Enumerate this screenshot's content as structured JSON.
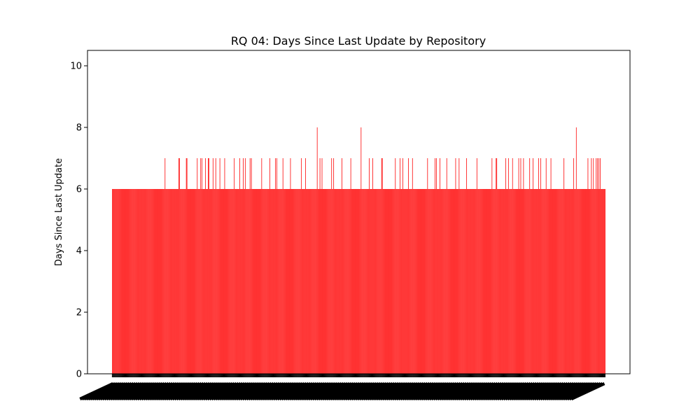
{
  "chart_data": {
    "type": "bar",
    "title": "RQ 04: Days Since Last Update by Repository",
    "xlabel": "",
    "ylabel": "Days Since Last Update",
    "ylim": [
      0,
      10.5
    ],
    "yticks": [
      "0",
      "2",
      "4",
      "6",
      "8",
      "10"
    ],
    "bar_color": "#ff0000",
    "grid": false,
    "legend": "none",
    "x_tick_labels_legible": false,
    "values": [
      6,
      6,
      6,
      6,
      6,
      6,
      6,
      6,
      6,
      6,
      6,
      6,
      6,
      6,
      6,
      6,
      6,
      6,
      6,
      6,
      6,
      6,
      6,
      6,
      6,
      6,
      6,
      6,
      6,
      6,
      6,
      6,
      6,
      6,
      6,
      6,
      6,
      6,
      6,
      6,
      6,
      6,
      6,
      6,
      6,
      6,
      6,
      6,
      6,
      6,
      6,
      6,
      6,
      6,
      6,
      6,
      6,
      6,
      6,
      6,
      6,
      6,
      6,
      6,
      6,
      6,
      6,
      6,
      6,
      6,
      6,
      6,
      6,
      6,
      6,
      6,
      6,
      7,
      6,
      6,
      6,
      6,
      6,
      6,
      6,
      6,
      6,
      6,
      6,
      6,
      6,
      6,
      6,
      6,
      6,
      6,
      6,
      6,
      6,
      6,
      6,
      6,
      6,
      6,
      6,
      6,
      6,
      6,
      6,
      6,
      6,
      6,
      6,
      6,
      6,
      6,
      6,
      6,
      6,
      6,
      6,
      6,
      6,
      6,
      6,
      6,
      6,
      6,
      6,
      6,
      6,
      6,
      6,
      6,
      6,
      6,
      6,
      6,
      6,
      6,
      6,
      6,
      6,
      6,
      6,
      6,
      6,
      6,
      6,
      6,
      6,
      6,
      6,
      6,
      6,
      6,
      6,
      6,
      6,
      6,
      6,
      6,
      6,
      6,
      6,
      6,
      6,
      6,
      6,
      6,
      6,
      6,
      6,
      6,
      6,
      6,
      6,
      6,
      6,
      6,
      6,
      6,
      6,
      6,
      6,
      6,
      6,
      6,
      6,
      6,
      6,
      6,
      6,
      6,
      6,
      6,
      6,
      6,
      6,
      6,
      6,
      6,
      6,
      6,
      6,
      6,
      6,
      6,
      6,
      6,
      6,
      6,
      6,
      6,
      6,
      6,
      6,
      6,
      6,
      6,
      6,
      6,
      6,
      6,
      6,
      6,
      6,
      6,
      6,
      6,
      6,
      6,
      6,
      6,
      6,
      6,
      6,
      6,
      6,
      6,
      6,
      6,
      6,
      6,
      6,
      6,
      6,
      6,
      6,
      6,
      6,
      6,
      6,
      6,
      6,
      6,
      6,
      6,
      6,
      6,
      6,
      6,
      6,
      6,
      6,
      6,
      6,
      6,
      6,
      6,
      6,
      6,
      6,
      6,
      6,
      6,
      6,
      6,
      6,
      6,
      6,
      6,
      6,
      6,
      6,
      6,
      6,
      6,
      6,
      6,
      6,
      6,
      6,
      6,
      6,
      6,
      6,
      6,
      6,
      6,
      6,
      6,
      6,
      6,
      6,
      6,
      6,
      6,
      6,
      6,
      6,
      6,
      6,
      6,
      6,
      6,
      6,
      6,
      6,
      6,
      6,
      6,
      6,
      6,
      6,
      6,
      6,
      6,
      6,
      6,
      6,
      6,
      6,
      6,
      6,
      6,
      6,
      6,
      6,
      6,
      6,
      6,
      6,
      6,
      6,
      6,
      6,
      6,
      6,
      6,
      6,
      6,
      6,
      6,
      6,
      6,
      6,
      6,
      6,
      6,
      6,
      6,
      6,
      6,
      6,
      6,
      6,
      6,
      6,
      6,
      6,
      6,
      6,
      6,
      6,
      6,
      6,
      6,
      6,
      6,
      6,
      6,
      6,
      6,
      6,
      6,
      6,
      6,
      6,
      6,
      6,
      6,
      6,
      6,
      6,
      6,
      6,
      6,
      6,
      6,
      6,
      6,
      6,
      6,
      6,
      6,
      6,
      6,
      6,
      6,
      6,
      6,
      6,
      6,
      6,
      6,
      6,
      6,
      6,
      6,
      6,
      6,
      6,
      6,
      6,
      6,
      6,
      6,
      6,
      6,
      6,
      6,
      6,
      6,
      6,
      6,
      6,
      6,
      6,
      6,
      6,
      6,
      6,
      6,
      6,
      6,
      6,
      6,
      6,
      6,
      6,
      6,
      6,
      6,
      6,
      6,
      6,
      6,
      6,
      6,
      6,
      6,
      6,
      6,
      6,
      6,
      6,
      6,
      6,
      6,
      6,
      6,
      6,
      6,
      6,
      6,
      6,
      6,
      6,
      6,
      6,
      6,
      6,
      6,
      6,
      6,
      6,
      6,
      6,
      6,
      6,
      6,
      6,
      6,
      6,
      6,
      6,
      6,
      6,
      6,
      6,
      6,
      6,
      6,
      6,
      6,
      6,
      6,
      6,
      6,
      6,
      6,
      6,
      6,
      6,
      6,
      6,
      6,
      6,
      6,
      6,
      6,
      6,
      6,
      6,
      6,
      6,
      6,
      6,
      6,
      6,
      6,
      6,
      6,
      6,
      6,
      6,
      6,
      6,
      6,
      6,
      6,
      6,
      6,
      6,
      6,
      6,
      6,
      6,
      6,
      6,
      6,
      6,
      6,
      6,
      6,
      6,
      6,
      6,
      6,
      6,
      6,
      6,
      6,
      6,
      6,
      6,
      6,
      6,
      6,
      6,
      6,
      6,
      6,
      6,
      6,
      6,
      6,
      6,
      6,
      6,
      6,
      6,
      6,
      6,
      6,
      6,
      6,
      6,
      6,
      6,
      6,
      6,
      6,
      6,
      6,
      6,
      6,
      6,
      6,
      6,
      6,
      6,
      6,
      6,
      6,
      6,
      6,
      6,
      6,
      6,
      6,
      6,
      6,
      6,
      6,
      6,
      6,
      6,
      6,
      6,
      6,
      6,
      6,
      6,
      6,
      6,
      6,
      6,
      6,
      6,
      6,
      6,
      6,
      6,
      6,
      6,
      6,
      6,
      6,
      6,
      6,
      6,
      6,
      6,
      6,
      6,
      6,
      6,
      6,
      6,
      6,
      6,
      6,
      6,
      6,
      6,
      6,
      6,
      6,
      6,
      6,
      6,
      6,
      6,
      6,
      6,
      6,
      6,
      6,
      6,
      6,
      6,
      6,
      6,
      6,
      6,
      6,
      6,
      6,
      6,
      6,
      6,
      6,
      6,
      6,
      6,
      6,
      6,
      6,
      6,
      6,
      6,
      6,
      6,
      6,
      6,
      6,
      6,
      6,
      6,
      6,
      6,
      6,
      6,
      6,
      6,
      6,
      6,
      6,
      6,
      6,
      6,
      6,
      6,
      6,
      6,
      6,
      6,
      6
    ],
    "overrides": [
      [
        77,
        7
      ],
      [
        97,
        7
      ],
      [
        98,
        7
      ],
      [
        108,
        7
      ],
      [
        109,
        7
      ],
      [
        124,
        7
      ],
      [
        129,
        7
      ],
      [
        131,
        7
      ],
      [
        136,
        7
      ],
      [
        140,
        7
      ],
      [
        141,
        7
      ],
      [
        147,
        7
      ],
      [
        151,
        7
      ],
      [
        157,
        7
      ],
      [
        164,
        7
      ],
      [
        178,
        7
      ],
      [
        186,
        7
      ],
      [
        191,
        7
      ],
      [
        194,
        7
      ],
      [
        201,
        7
      ],
      [
        203,
        7
      ],
      [
        218,
        7
      ],
      [
        230,
        7
      ],
      [
        238,
        7
      ],
      [
        240,
        7
      ],
      [
        249,
        7
      ],
      [
        260,
        7
      ],
      [
        276,
        7
      ],
      [
        282,
        7
      ],
      [
        303,
        7
      ],
      [
        306,
        7
      ],
      [
        320,
        7
      ],
      [
        323,
        7
      ],
      [
        335,
        7
      ],
      [
        348,
        7
      ],
      [
        375,
        7
      ],
      [
        380,
        7
      ],
      [
        393,
        7
      ],
      [
        394,
        7
      ],
      [
        413,
        7
      ],
      [
        420,
        7
      ],
      [
        424,
        7
      ],
      [
        432,
        7
      ],
      [
        438,
        7
      ],
      [
        460,
        7
      ],
      [
        471,
        7
      ],
      [
        473,
        7
      ],
      [
        478,
        7
      ],
      [
        488,
        7
      ],
      [
        501,
        7
      ],
      [
        506,
        7
      ],
      [
        517,
        7
      ],
      [
        532,
        7
      ],
      [
        554,
        7
      ],
      [
        560,
        7
      ],
      [
        561,
        7
      ],
      [
        574,
        7
      ],
      [
        578,
        7
      ],
      [
        584,
        7
      ],
      [
        593,
        7
      ],
      [
        596,
        7
      ],
      [
        600,
        7
      ],
      [
        609,
        7
      ],
      [
        614,
        7
      ],
      [
        622,
        7
      ],
      [
        625,
        7
      ],
      [
        633,
        7
      ],
      [
        640,
        7
      ],
      [
        659,
        7
      ],
      [
        673,
        7
      ],
      [
        694,
        7
      ],
      [
        699,
        7
      ],
      [
        702,
        7
      ],
      [
        706,
        7
      ],
      [
        708,
        7
      ],
      [
        710,
        7
      ],
      [
        712,
        7
      ],
      [
        299,
        8
      ],
      [
        363,
        8
      ],
      [
        677,
        8
      ]
    ]
  }
}
